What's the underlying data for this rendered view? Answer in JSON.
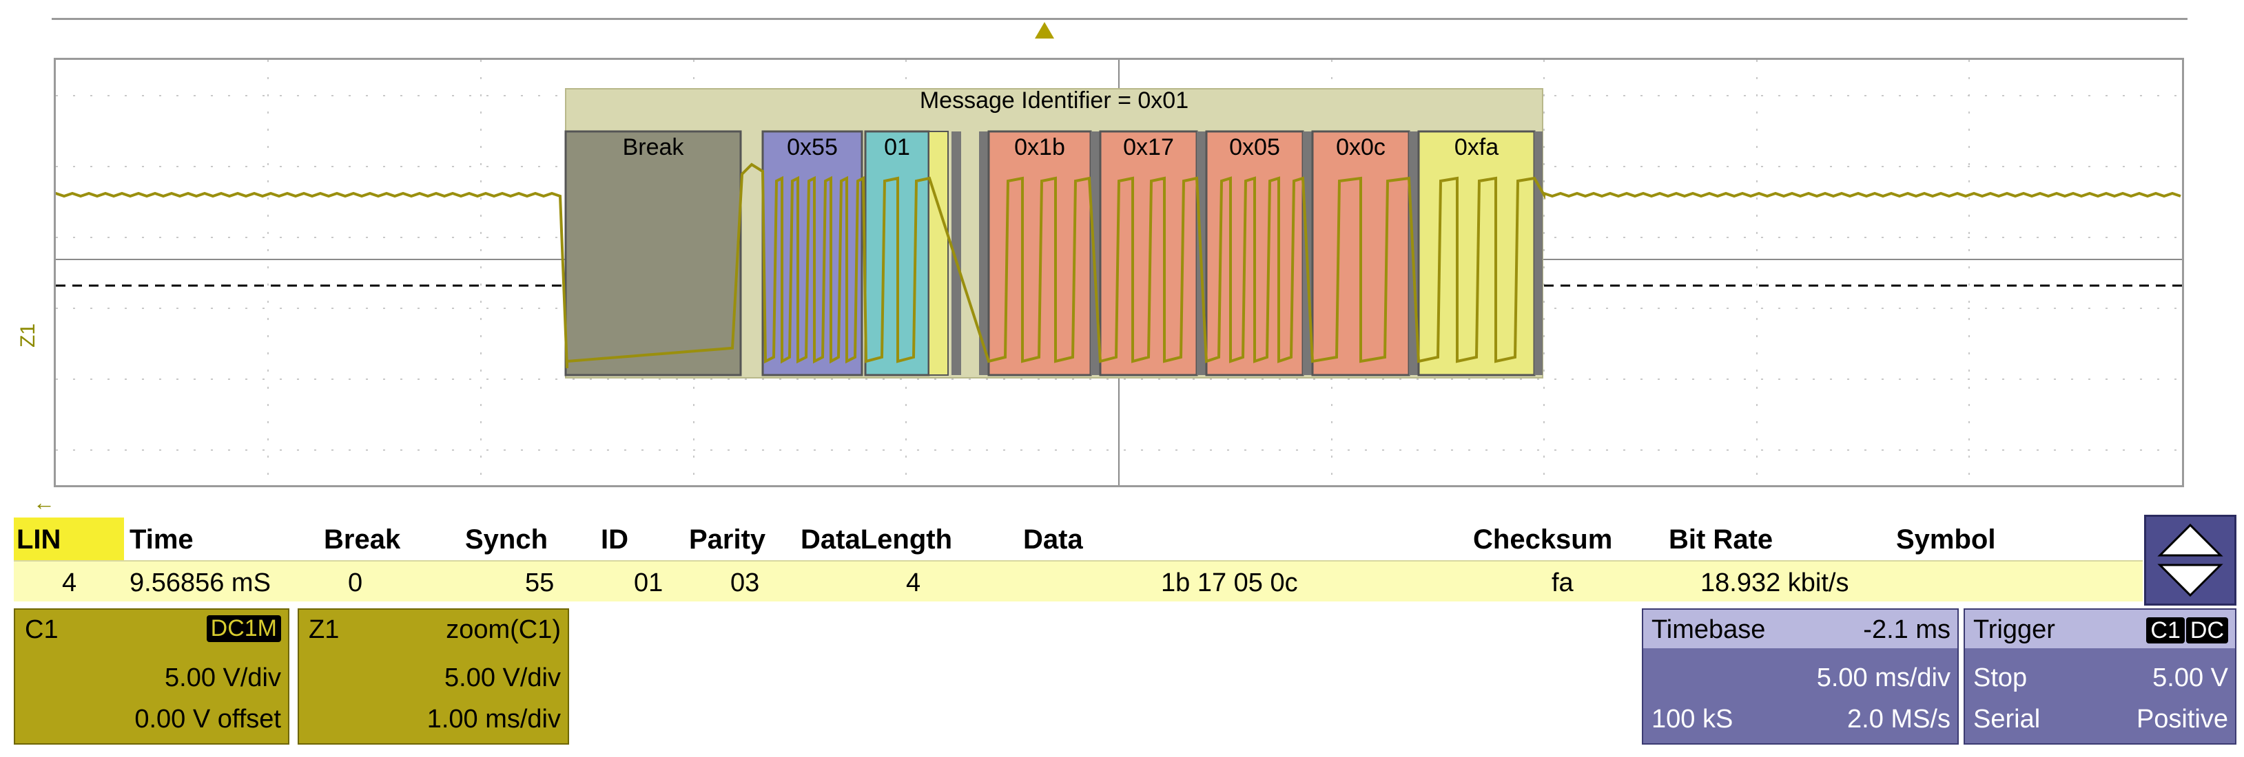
{
  "scope": {
    "zoom_trace_label": "Z1",
    "frame_label": "Message Identifier = 0x01",
    "fields": [
      {
        "label": "Break"
      },
      {
        "label": "0x55"
      },
      {
        "label": "01"
      },
      {
        "label": "0x1b"
      },
      {
        "label": "0x17"
      },
      {
        "label": "0x05"
      },
      {
        "label": "0x0c"
      },
      {
        "label": "0xfa"
      }
    ],
    "colors": {
      "trace": "#9a8f0e",
      "break": "#8f8f7a",
      "sync": "#8c8cc8",
      "id": "#78c8c8",
      "data": "#e8987e",
      "checksum": "#eaea80",
      "frame_bg": "#d8d8b0"
    }
  },
  "decode_table": {
    "headers": {
      "lin": "LIN",
      "time": "Time",
      "break": "Break",
      "synch": "Synch",
      "id": "ID",
      "parity": "Parity",
      "datalength": "DataLength",
      "data": "Data",
      "checksum": "Checksum",
      "bitrate": "Bit Rate",
      "symbol": "Symbol"
    },
    "row": {
      "lin": "4",
      "time": "9.56856 mS",
      "break": "0",
      "synch": "55",
      "id": "01",
      "parity": "03",
      "datalength": "4",
      "data": "1b 17 05 0c",
      "checksum": "fa",
      "bitrate": "18.932 kbit/s",
      "symbol": ""
    }
  },
  "channels": {
    "c1": {
      "name": "C1",
      "coupling": "DC1M",
      "scale": "5.00 V/div",
      "offset": "0.00 V offset"
    },
    "z1": {
      "name": "Z1",
      "source": "zoom(C1)",
      "scale": "5.00 V/div",
      "timebase": "1.00 ms/div"
    }
  },
  "timebase": {
    "title": "Timebase",
    "delay": "-2.1 ms",
    "scale": "5.00 ms/div",
    "samples": "100 kS",
    "rate": "2.0 MS/s"
  },
  "trigger": {
    "title": "Trigger",
    "source": "C1",
    "coupling": "DC",
    "mode": "Stop",
    "level": "5.00 V",
    "type": "Serial",
    "slope": "Positive"
  },
  "icons": {
    "left_arrow": "arrow-left-icon",
    "scroll": "scroll-up-down-icon",
    "trigger_marker": "trigger-position-icon"
  }
}
